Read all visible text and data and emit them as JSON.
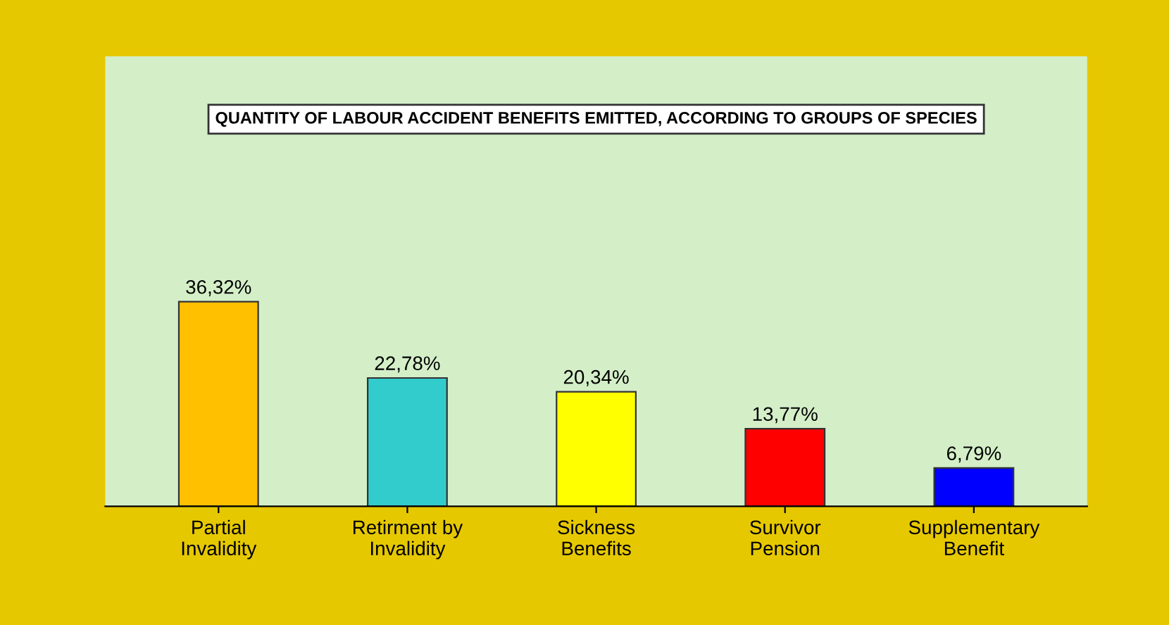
{
  "chart_data": {
    "type": "bar",
    "title": "QUANTITY OF LABOUR ACCIDENT BENEFITS EMITTED, ACCORDING TO GROUPS OF SPECIES",
    "categories": [
      "Partial\nInvalidity",
      "Retirment by\nInvalidity",
      "Sickness\nBenefits",
      "Survivor\nPension",
      "Supplementary\nBenefit"
    ],
    "values": [
      36.32,
      22.78,
      20.34,
      13.77,
      6.79
    ],
    "colors": [
      "#ffc000",
      "#33cccc",
      "#ffff00",
      "#ff0000",
      "#0000ff"
    ],
    "value_labels": [
      "36,32%",
      "22,78%",
      "20,34%",
      "13,77%",
      "6,79%"
    ],
    "grid": false,
    "legend": false
  }
}
